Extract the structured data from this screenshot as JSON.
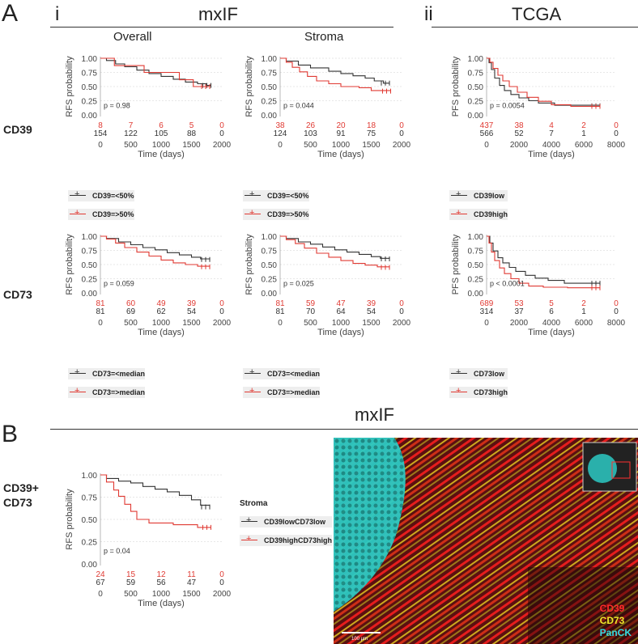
{
  "figure": {
    "panel_a_letter": "A",
    "panel_b_letter": "B",
    "section_i": "i",
    "section_ii": "ii",
    "mxif_title": "mxIF",
    "tcga_title": "TCGA",
    "mxif_title_b": "mxIF",
    "col_overall": "Overall",
    "col_stroma": "Stroma",
    "row_cd39": "CD39",
    "row_cd73": "CD73",
    "row_b_line1": "CD39+",
    "row_b_line2": "CD73",
    "b_legend_title": "Stroma"
  },
  "colors": {
    "black": "#333333",
    "red": "#e03a33",
    "cyan": "#2fd6d0",
    "yellow": "#e8e02a",
    "micro_red": "#ff1a1a"
  },
  "micrograph": {
    "labels": [
      {
        "text": "CD39",
        "color": "#ff2a2a"
      },
      {
        "text": "CD73",
        "color": "#f0e62a"
      },
      {
        "text": "PanCK",
        "color": "#35d9e0"
      }
    ],
    "scale_label": "100 µm"
  },
  "chart_data": [
    {
      "id": "cd39-overall",
      "type": "line",
      "ylabel": "RFS probability",
      "xlabel": "Time (days)",
      "ylim": [
        0,
        1
      ],
      "xlim": [
        0,
        2000
      ],
      "yticks": [
        "0.00",
        "0.25",
        "0.50",
        "0.75",
        "1.00"
      ],
      "xticks": [
        "0",
        "500",
        "1000",
        "1500",
        "2000"
      ],
      "pvalue": "p = 0.98",
      "series": [
        {
          "name": "CD39=<50%",
          "color": "#333333",
          "points": [
            [
              0,
              1.0
            ],
            [
              100,
              0.96
            ],
            [
              250,
              0.9
            ],
            [
              400,
              0.85
            ],
            [
              600,
              0.79
            ],
            [
              800,
              0.73
            ],
            [
              1000,
              0.68
            ],
            [
              1200,
              0.63
            ],
            [
              1400,
              0.58
            ],
            [
              1600,
              0.55
            ],
            [
              1750,
              0.52
            ],
            [
              1820,
              0.52
            ]
          ],
          "risk": [
            "154",
            "122",
            "105",
            "88",
            "0"
          ]
        },
        {
          "name": "CD39=>50%",
          "color": "#e03a33",
          "points": [
            [
              0,
              1.0
            ],
            [
              230,
              1.0
            ],
            [
              230,
              0.87
            ],
            [
              720,
              0.87
            ],
            [
              720,
              0.75
            ],
            [
              1300,
              0.75
            ],
            [
              1300,
              0.62
            ],
            [
              1530,
              0.62
            ],
            [
              1530,
              0.5
            ],
            [
              1800,
              0.5
            ]
          ],
          "risk": [
            "8",
            "7",
            "6",
            "5",
            "0"
          ]
        }
      ]
    },
    {
      "id": "cd39-stroma",
      "type": "line",
      "ylabel": "RFS probability",
      "xlabel": "Time (days)",
      "ylim": [
        0,
        1
      ],
      "xlim": [
        0,
        2000
      ],
      "yticks": [
        "0.00",
        "0.25",
        "0.50",
        "0.75",
        "1.00"
      ],
      "xticks": [
        "0",
        "500",
        "1000",
        "1500",
        "2000"
      ],
      "pvalue": "p = 0.044",
      "series": [
        {
          "name": "CD39=<50%",
          "color": "#333333",
          "points": [
            [
              0,
              1.0
            ],
            [
              100,
              0.95
            ],
            [
              300,
              0.88
            ],
            [
              500,
              0.83
            ],
            [
              800,
              0.77
            ],
            [
              1000,
              0.73
            ],
            [
              1200,
              0.69
            ],
            [
              1400,
              0.65
            ],
            [
              1550,
              0.6
            ],
            [
              1700,
              0.56
            ],
            [
              1800,
              0.56
            ]
          ],
          "risk": [
            "124",
            "103",
            "91",
            "75",
            "0"
          ]
        },
        {
          "name": "CD39=>50%",
          "color": "#e03a33",
          "points": [
            [
              0,
              1.0
            ],
            [
              100,
              0.93
            ],
            [
              200,
              0.84
            ],
            [
              320,
              0.76
            ],
            [
              450,
              0.68
            ],
            [
              600,
              0.6
            ],
            [
              800,
              0.55
            ],
            [
              1000,
              0.5
            ],
            [
              1300,
              0.48
            ],
            [
              1500,
              0.43
            ],
            [
              1820,
              0.42
            ]
          ],
          "risk": [
            "38",
            "26",
            "20",
            "18",
            "0"
          ]
        }
      ]
    },
    {
      "id": "cd39-tcga",
      "type": "line",
      "ylabel": "PFS probability",
      "xlabel": "Time (days)",
      "ylim": [
        0,
        1
      ],
      "xlim": [
        0,
        8000
      ],
      "yticks": [
        "0.00",
        "0.25",
        "0.50",
        "0.75",
        "1.00"
      ],
      "xticks": [
        "0",
        "2000",
        "4000",
        "6000",
        "8000"
      ],
      "pvalue": "p = 0.0054",
      "series": [
        {
          "name": "CD39low",
          "color": "#333333",
          "points": [
            [
              0,
              1.0
            ],
            [
              150,
              0.92
            ],
            [
              300,
              0.8
            ],
            [
              500,
              0.65
            ],
            [
              800,
              0.52
            ],
            [
              1100,
              0.43
            ],
            [
              1500,
              0.36
            ],
            [
              2000,
              0.3
            ],
            [
              2600,
              0.25
            ],
            [
              3200,
              0.21
            ],
            [
              4200,
              0.17
            ],
            [
              7000,
              0.16
            ]
          ],
          "risk": [
            "566",
            "52",
            "7",
            "1",
            "0"
          ]
        },
        {
          "name": "CD39high",
          "color": "#e03a33",
          "points": [
            [
              0,
              1.0
            ],
            [
              200,
              0.93
            ],
            [
              400,
              0.82
            ],
            [
              700,
              0.7
            ],
            [
              1000,
              0.6
            ],
            [
              1400,
              0.5
            ],
            [
              1900,
              0.4
            ],
            [
              2500,
              0.31
            ],
            [
              3200,
              0.24
            ],
            [
              4000,
              0.18
            ],
            [
              5200,
              0.15
            ],
            [
              7000,
              0.15
            ]
          ],
          "risk": [
            "437",
            "38",
            "4",
            "2",
            "0"
          ]
        }
      ]
    },
    {
      "id": "cd73-overall",
      "type": "line",
      "ylabel": "RFS probability",
      "xlabel": "Time (days)",
      "ylim": [
        0,
        1
      ],
      "xlim": [
        0,
        2000
      ],
      "yticks": [
        "0.00",
        "0.25",
        "0.50",
        "0.75",
        "1.00"
      ],
      "xticks": [
        "0",
        "500",
        "1000",
        "1500",
        "2000"
      ],
      "pvalue": "p = 0.059",
      "series": [
        {
          "name": "CD73=<median",
          "color": "#333333",
          "points": [
            [
              0,
              1.0
            ],
            [
              100,
              0.96
            ],
            [
              300,
              0.9
            ],
            [
              500,
              0.85
            ],
            [
              700,
              0.8
            ],
            [
              900,
              0.76
            ],
            [
              1100,
              0.71
            ],
            [
              1300,
              0.67
            ],
            [
              1500,
              0.63
            ],
            [
              1650,
              0.6
            ],
            [
              1800,
              0.59
            ]
          ],
          "risk": [
            "81",
            "69",
            "62",
            "54",
            "0"
          ]
        },
        {
          "name": "CD73=>median",
          "color": "#e03a33",
          "points": [
            [
              0,
              1.0
            ],
            [
              100,
              0.95
            ],
            [
              250,
              0.88
            ],
            [
              400,
              0.8
            ],
            [
              600,
              0.72
            ],
            [
              800,
              0.65
            ],
            [
              1000,
              0.58
            ],
            [
              1200,
              0.53
            ],
            [
              1400,
              0.5
            ],
            [
              1600,
              0.47
            ],
            [
              1800,
              0.46
            ]
          ],
          "risk": [
            "81",
            "60",
            "49",
            "39",
            "0"
          ]
        }
      ]
    },
    {
      "id": "cd73-stroma",
      "type": "line",
      "ylabel": "RFS probability",
      "xlabel": "Time (days)",
      "ylim": [
        0,
        1
      ],
      "xlim": [
        0,
        2000
      ],
      "yticks": [
        "0.00",
        "0.25",
        "0.50",
        "0.75",
        "1.00"
      ],
      "xticks": [
        "0",
        "500",
        "1000",
        "1500",
        "2000"
      ],
      "pvalue": "p = 0.025",
      "series": [
        {
          "name": "CD73=<median",
          "color": "#333333",
          "points": [
            [
              0,
              1.0
            ],
            [
              100,
              0.96
            ],
            [
              300,
              0.9
            ],
            [
              500,
              0.86
            ],
            [
              700,
              0.81
            ],
            [
              900,
              0.76
            ],
            [
              1100,
              0.72
            ],
            [
              1300,
              0.68
            ],
            [
              1500,
              0.64
            ],
            [
              1650,
              0.61
            ],
            [
              1800,
              0.6
            ]
          ],
          "risk": [
            "81",
            "70",
            "64",
            "54",
            "0"
          ]
        },
        {
          "name": "CD73=>median",
          "color": "#e03a33",
          "points": [
            [
              0,
              1.0
            ],
            [
              100,
              0.94
            ],
            [
              250,
              0.87
            ],
            [
              400,
              0.79
            ],
            [
              600,
              0.7
            ],
            [
              800,
              0.63
            ],
            [
              1000,
              0.57
            ],
            [
              1200,
              0.52
            ],
            [
              1400,
              0.49
            ],
            [
              1600,
              0.46
            ],
            [
              1800,
              0.45
            ]
          ],
          "risk": [
            "81",
            "59",
            "47",
            "39",
            "0"
          ]
        }
      ]
    },
    {
      "id": "cd73-tcga",
      "type": "line",
      "ylabel": "PFS probability",
      "xlabel": "Time (days)",
      "ylim": [
        0,
        1
      ],
      "xlim": [
        0,
        8000
      ],
      "yticks": [
        "0.00",
        "0.25",
        "0.50",
        "0.75",
        "1.00"
      ],
      "xticks": [
        "0",
        "2000",
        "4000",
        "6000",
        "8000"
      ],
      "pvalue": "p < 0.0001",
      "series": [
        {
          "name": "CD73low",
          "color": "#333333",
          "points": [
            [
              0,
              1.0
            ],
            [
              200,
              0.88
            ],
            [
              400,
              0.74
            ],
            [
              700,
              0.62
            ],
            [
              1000,
              0.53
            ],
            [
              1400,
              0.45
            ],
            [
              1800,
              0.38
            ],
            [
              2400,
              0.31
            ],
            [
              3000,
              0.26
            ],
            [
              3800,
              0.22
            ],
            [
              4800,
              0.17
            ],
            [
              7000,
              0.17
            ]
          ],
          "risk": [
            "314",
            "37",
            "6",
            "1",
            "0"
          ]
        },
        {
          "name": "CD73high",
          "color": "#e03a33",
          "points": [
            [
              0,
              1.0
            ],
            [
              150,
              0.88
            ],
            [
              300,
              0.72
            ],
            [
              500,
              0.57
            ],
            [
              800,
              0.44
            ],
            [
              1100,
              0.34
            ],
            [
              1500,
              0.25
            ],
            [
              2000,
              0.17
            ],
            [
              2600,
              0.12
            ],
            [
              3500,
              0.1
            ],
            [
              5000,
              0.09
            ],
            [
              7000,
              0.09
            ]
          ],
          "risk": [
            "689",
            "53",
            "5",
            "2",
            "0"
          ]
        }
      ]
    },
    {
      "id": "cd39cd73-stroma",
      "type": "line",
      "ylabel": "RFS probability",
      "xlabel": "Time (days)",
      "ylim": [
        0,
        1
      ],
      "xlim": [
        0,
        2000
      ],
      "yticks": [
        "0.00",
        "0.25",
        "0.50",
        "0.75",
        "1.00"
      ],
      "xticks": [
        "0",
        "500",
        "1000",
        "1500",
        "2000"
      ],
      "pvalue": "p = 0.04",
      "series": [
        {
          "name": "CD39lowCD73low",
          "color": "#333333",
          "points": [
            [
              0,
              1.0
            ],
            [
              100,
              0.96
            ],
            [
              300,
              0.93
            ],
            [
              500,
              0.91
            ],
            [
              700,
              0.87
            ],
            [
              900,
              0.84
            ],
            [
              1100,
              0.81
            ],
            [
              1300,
              0.77
            ],
            [
              1500,
              0.72
            ],
            [
              1650,
              0.66
            ],
            [
              1800,
              0.64
            ]
          ],
          "risk": [
            "67",
            "59",
            "56",
            "47",
            "0"
          ]
        },
        {
          "name": "CD39highCD73high",
          "color": "#e03a33",
          "points": [
            [
              0,
              1.0
            ],
            [
              100,
              0.92
            ],
            [
              220,
              0.83
            ],
            [
              300,
              0.76
            ],
            [
              400,
              0.67
            ],
            [
              500,
              0.59
            ],
            [
              600,
              0.5
            ],
            [
              750,
              0.5
            ],
            [
              800,
              0.46
            ],
            [
              1000,
              0.46
            ],
            [
              1150,
              0.46
            ],
            [
              1200,
              0.44
            ],
            [
              1500,
              0.44
            ],
            [
              1600,
              0.41
            ],
            [
              1820,
              0.41
            ]
          ],
          "risk": [
            "24",
            "15",
            "12",
            "11",
            "0"
          ]
        }
      ]
    }
  ]
}
